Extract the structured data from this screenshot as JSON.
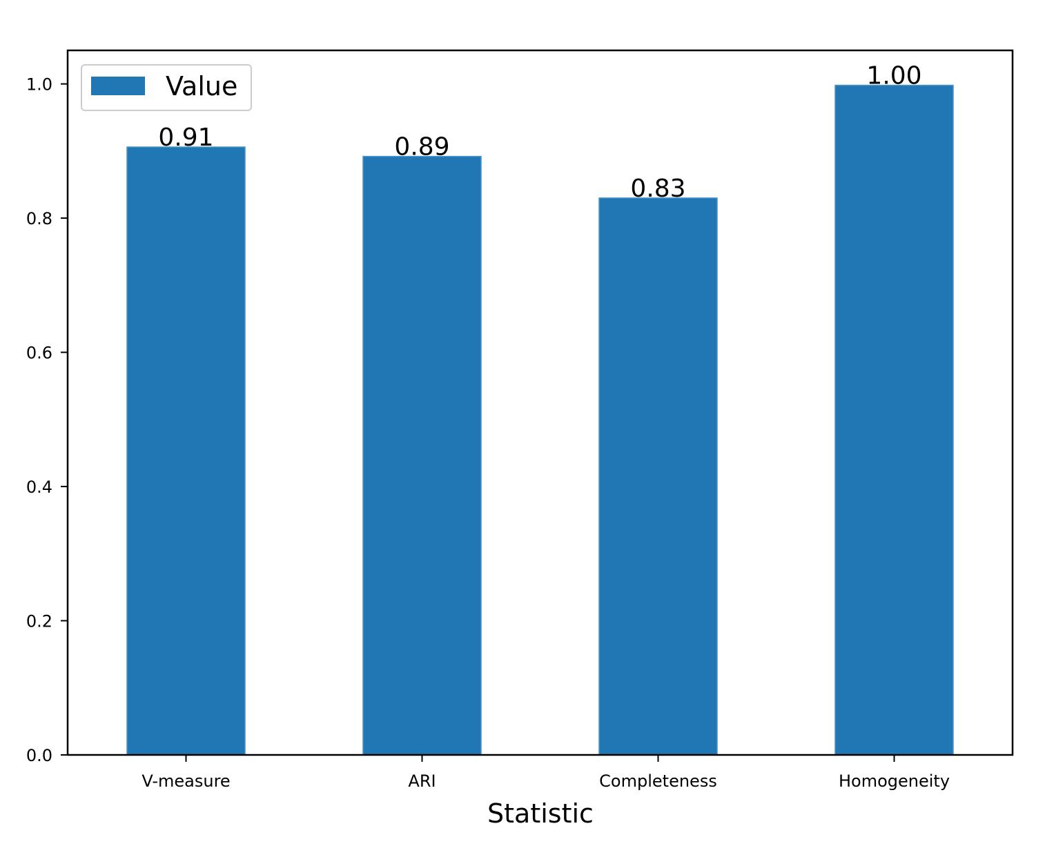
{
  "chart_data": {
    "type": "bar",
    "categories": [
      "V-measure",
      "ARI",
      "Completeness",
      "Homogeneity"
    ],
    "series": [
      {
        "name": "Value",
        "values": [
          0.906,
          0.892,
          0.83,
          0.998
        ],
        "color": "#2077b4"
      }
    ],
    "data_labels": [
      "0.91",
      "0.89",
      "0.83",
      "1.00"
    ],
    "title": "",
    "xlabel": "Statistic",
    "ylabel": "",
    "ylim": [
      0,
      1.05
    ],
    "yticks": [
      0.0,
      0.2,
      0.4,
      0.6,
      0.8,
      1.0
    ],
    "ytick_labels": [
      "0.0",
      "0.2",
      "0.4",
      "0.6",
      "0.8",
      "1.0"
    ],
    "grid": false,
    "legend": {
      "position": "top-left",
      "entries": [
        "Value"
      ]
    }
  }
}
